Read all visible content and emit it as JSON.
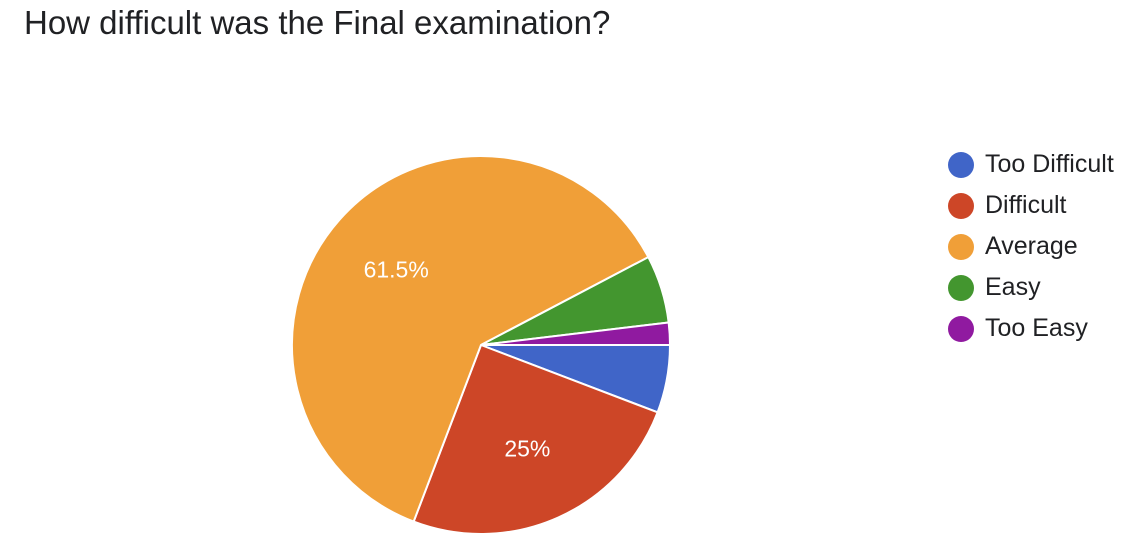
{
  "chart_data": {
    "type": "pie",
    "title": "How difficult was the Final examination?",
    "slices": [
      {
        "label": "Too Difficult",
        "value": 5.8,
        "color": "#4065C8"
      },
      {
        "label": "Difficult",
        "value": 25,
        "color": "#CD4627",
        "display_label": "25%"
      },
      {
        "label": "Average",
        "value": 61.5,
        "color": "#F09F38",
        "display_label": "61.5%"
      },
      {
        "label": "Easy",
        "value": 5.8,
        "color": "#43962F"
      },
      {
        "label": "Too Easy",
        "value": 1.9,
        "color": "#901AA0"
      }
    ],
    "legend_position": "right"
  }
}
